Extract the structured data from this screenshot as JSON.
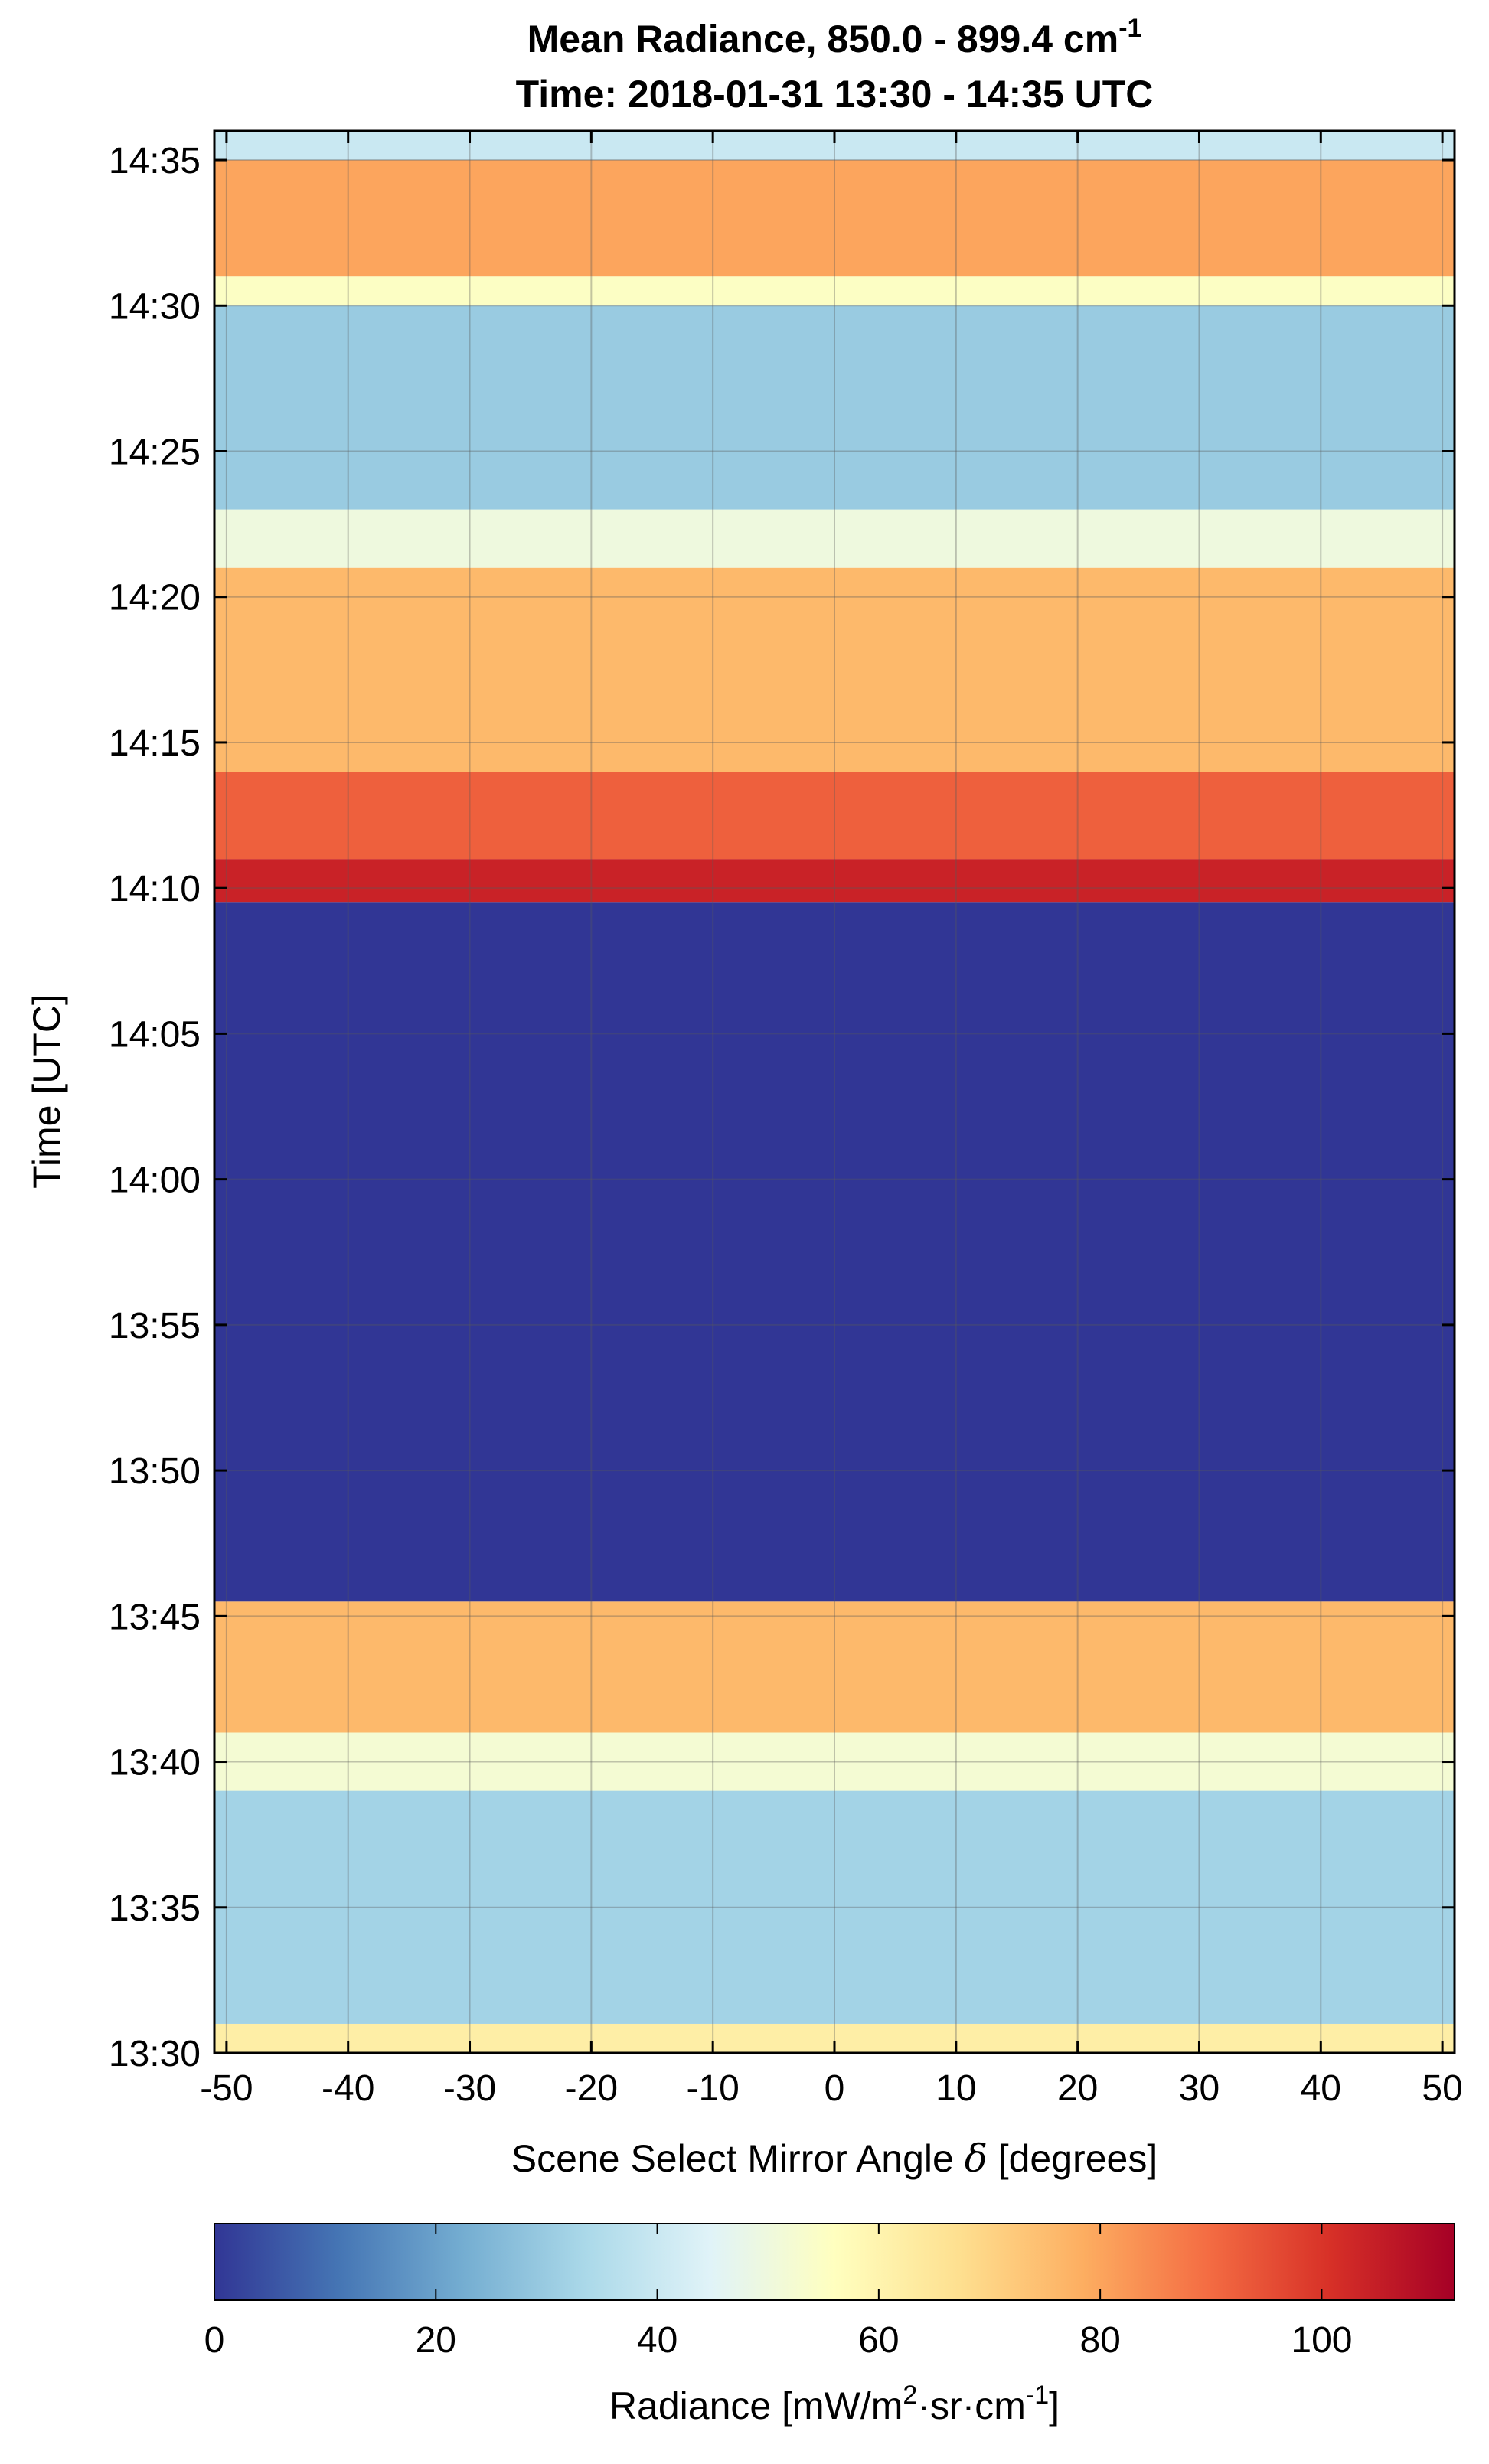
{
  "chart_data": {
    "type": "heatmap",
    "title_parts": {
      "main": "Mean Radiance, 850.0 - 899.4 cm",
      "main_sup": "-1"
    },
    "subtitle": "Time: 2018-01-31 13:30 - 14:35 UTC",
    "xlabel_parts": {
      "pre": "Scene Select Mirror Angle ",
      "sym": "δ",
      "post": " [degrees]"
    },
    "ylabel": "Time [UTC]",
    "x": {
      "min": -51,
      "max": 51,
      "ticks": [
        -50,
        -40,
        -30,
        -20,
        -10,
        0,
        10,
        20,
        30,
        40,
        50
      ],
      "tick_labels": [
        "-50",
        "-40",
        "-30",
        "-20",
        "-10",
        "0",
        "10",
        "20",
        "30",
        "40",
        "50"
      ]
    },
    "y": {
      "min": "13:30",
      "max": "14:36",
      "ticks": [
        "13:30",
        "13:35",
        "13:40",
        "13:45",
        "13:50",
        "13:55",
        "14:00",
        "14:05",
        "14:10",
        "14:15",
        "14:20",
        "14:25",
        "14:30",
        "14:35"
      ]
    },
    "grid": true,
    "colorbar": {
      "position": "bottom",
      "min": 0,
      "max": 112,
      "ticks": [
        0,
        20,
        40,
        60,
        80,
        100
      ],
      "tick_labels": [
        "0",
        "20",
        "40",
        "60",
        "80",
        "100"
      ],
      "label_parts": {
        "a": "Radiance [mW/m",
        "sup1": "2",
        "b": "·sr·cm",
        "sup2": "-1",
        "c": "]"
      },
      "colormap": [
        "#313695",
        "#4575b4",
        "#74add1",
        "#abd9e9",
        "#e0f3f8",
        "#ffffbf",
        "#fee090",
        "#fdae61",
        "#f46d43",
        "#d73027",
        "#a50026"
      ]
    },
    "bands": [
      {
        "from": "13:30",
        "to": "13:31",
        "radiance": 62
      },
      {
        "from": "13:31",
        "to": "13:39",
        "radiance": 32
      },
      {
        "from": "13:39",
        "to": "13:41",
        "radiance": 52
      },
      {
        "from": "13:41",
        "to": "13:45.5",
        "radiance": 76
      },
      {
        "from": "13:45.5",
        "to": "14:09.5",
        "radiance": 0
      },
      {
        "from": "14:09.5",
        "to": "14:11",
        "radiance": 104
      },
      {
        "from": "14:11",
        "to": "14:14",
        "radiance": 92
      },
      {
        "from": "14:14",
        "to": "14:21",
        "radiance": 76
      },
      {
        "from": "14:21",
        "to": "14:23",
        "radiance": 50
      },
      {
        "from": "14:23",
        "to": "14:30",
        "radiance": 30
      },
      {
        "from": "14:30",
        "to": "14:31",
        "radiance": 55
      },
      {
        "from": "14:31",
        "to": "14:35",
        "radiance": 80
      },
      {
        "from": "14:35",
        "to": "14:36",
        "radiance": 40
      }
    ]
  }
}
